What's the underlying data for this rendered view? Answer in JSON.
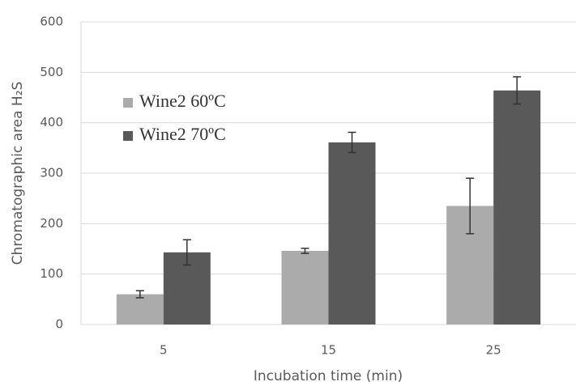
{
  "chart_data": {
    "type": "bar",
    "categories": [
      "5",
      "15",
      "25"
    ],
    "x_label": "Incubation time (min)",
    "y_label": "Chromatographic area H₂S",
    "ylim": [
      0,
      600
    ],
    "yticks": [
      0,
      100,
      200,
      300,
      400,
      500,
      600
    ],
    "grid": true,
    "series": [
      {
        "name": "Wine2 60ºC",
        "color": "#ababab",
        "values": [
          60,
          146,
          235
        ],
        "errors": [
          7,
          5,
          55
        ]
      },
      {
        "name": "Wine2 70ºC",
        "color": "#595959",
        "values": [
          143,
          361,
          464
        ],
        "errors": [
          25,
          20,
          27
        ]
      }
    ]
  }
}
